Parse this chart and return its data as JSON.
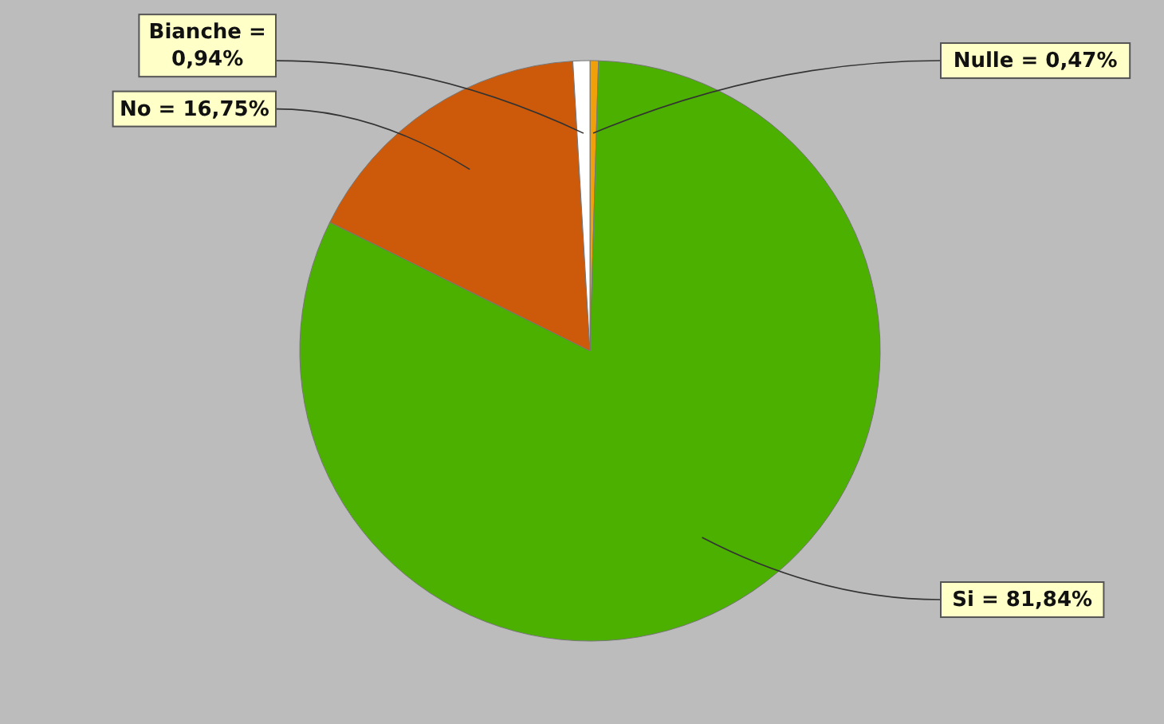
{
  "chart_data": {
    "type": "pie",
    "categories": [
      "Nulle",
      "Si",
      "No",
      "Bianche"
    ],
    "values": [
      0.47,
      81.84,
      16.75,
      0.94
    ],
    "colors": [
      "#f0a008",
      "#4cb000",
      "#cc5a0a",
      "#ffffff"
    ],
    "value_labels": [
      "= 0,47%",
      "= 81,84%",
      "= 16,75%",
      "= 0,94%"
    ],
    "legend": false
  }
}
